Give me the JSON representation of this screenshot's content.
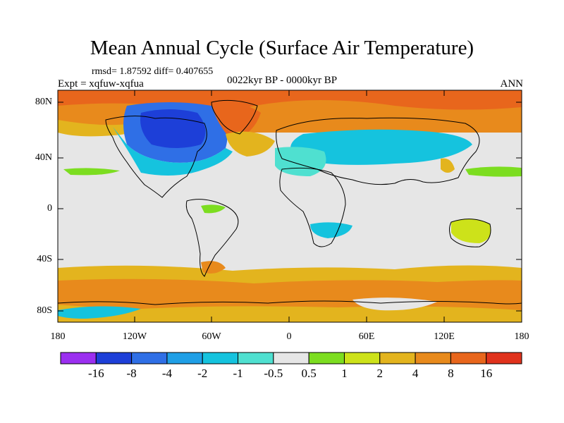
{
  "title": "Mean Annual Cycle (Surface Air Temperature)",
  "stats_text": "rmsd= 1.87592 diff= 0.407655",
  "experiment": "Expt = xqfuw-xqfua",
  "period": "0022kyr BP - 0000kyr BP",
  "season": "ANN",
  "y_axis": {
    "labels": [
      "80N",
      "40N",
      "0",
      "40S",
      "80S"
    ],
    "values": [
      80,
      40,
      0,
      -40,
      -80
    ]
  },
  "x_axis": {
    "labels": [
      "180",
      "120W",
      "60W",
      "0",
      "60E",
      "120E",
      "180"
    ],
    "values": [
      -180,
      -120,
      -60,
      0,
      60,
      120,
      180
    ]
  },
  "colorbar": {
    "labels": [
      "-16",
      "-8",
      "-4",
      "-2",
      "-1",
      "-0.5",
      "0.5",
      "1",
      "2",
      "4",
      "8",
      "16"
    ],
    "colors": [
      "#9b2ff0",
      "#1d3fd8",
      "#2f6fe6",
      "#1f9fe6",
      "#15c3de",
      "#4fe0d0",
      "#e6e6e6",
      "#7cdd20",
      "#cde21a",
      "#e3b41e",
      "#e88a1c",
      "#e8661c",
      "#e0321c"
    ]
  },
  "land_color": "#e6e6e6",
  "coast_color": "#000000"
}
